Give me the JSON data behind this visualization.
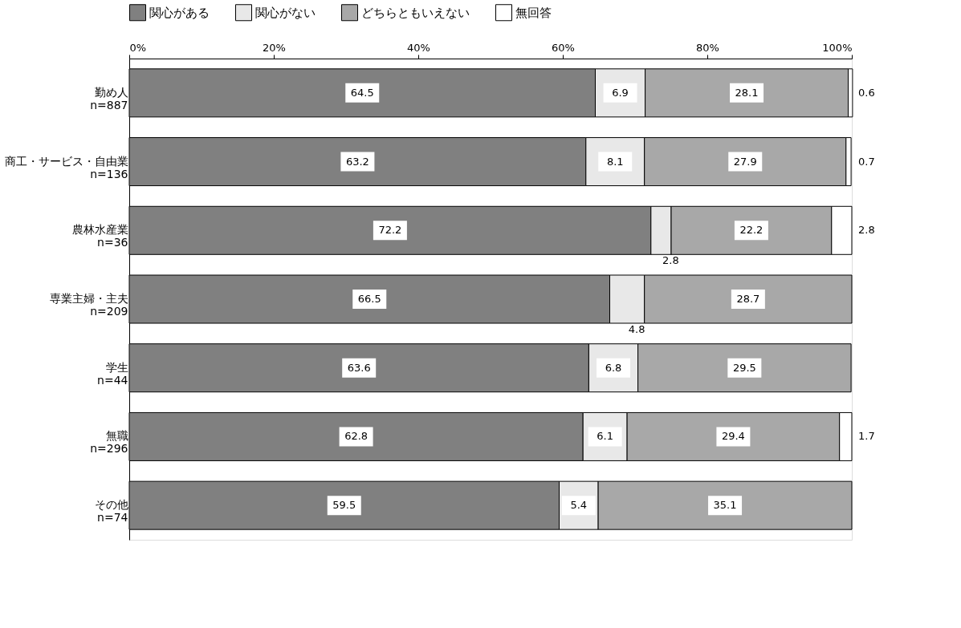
{
  "chart_data": {
    "type": "bar",
    "orientation": "horizontal",
    "stacked": true,
    "categories": [
      "勤め人\nn=887",
      "商工・サービス・自由業\nn=136",
      "農林水産業\nn=36",
      "専業主婦・主夫\nn=209",
      "学生\nn=44",
      "無職\nn=296",
      "その他\nn=74"
    ],
    "series": [
      {
        "name": "関心がある",
        "color": "#808080",
        "values": [
          64.5,
          63.2,
          72.2,
          66.5,
          63.6,
          62.8,
          59.5
        ]
      },
      {
        "name": "関心がない",
        "color": "#e8e8e8",
        "values": [
          6.9,
          8.1,
          2.8,
          4.8,
          6.8,
          6.1,
          5.4
        ]
      },
      {
        "name": "どちらともいえない",
        "color": "#a8a8a8",
        "values": [
          28.1,
          27.9,
          22.2,
          28.7,
          29.5,
          29.4,
          35.1
        ]
      },
      {
        "name": "無回答",
        "color": "#ffffff",
        "values": [
          0.6,
          0.7,
          2.8,
          null,
          null,
          1.7,
          null
        ]
      }
    ],
    "data_labels": true,
    "xlim": [
      0,
      100
    ],
    "xticks": [
      {
        "value": 0,
        "label": "0%"
      },
      {
        "value": 20,
        "label": "20%"
      },
      {
        "value": 40,
        "label": "40%"
      },
      {
        "value": 60,
        "label": "60%"
      },
      {
        "value": 80,
        "label": "80%"
      },
      {
        "value": 100,
        "label": "100%"
      }
    ],
    "grid": false,
    "legend": "top"
  }
}
